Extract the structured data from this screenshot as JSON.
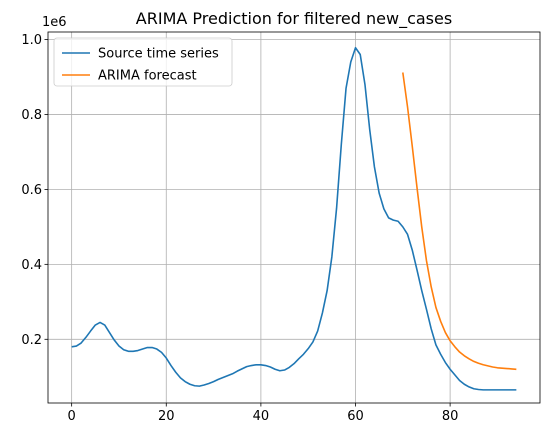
{
  "chart_data": {
    "type": "line",
    "title": "ARIMA Prediction for filtered new_cases",
    "xlabel": "",
    "ylabel": "",
    "y_offset_label": "1e6",
    "xlim": [
      -5,
      99
    ],
    "ylim": [
      0.03,
      1.02
    ],
    "x_ticks": [
      0,
      20,
      40,
      60,
      80
    ],
    "x_tick_labels": [
      "0",
      "20",
      "40",
      "60",
      "80"
    ],
    "y_ticks": [
      0.2,
      0.4,
      0.6,
      0.8,
      1.0
    ],
    "y_tick_labels": [
      "0.2",
      "0.4",
      "0.6",
      "0.8",
      "1.0"
    ],
    "grid": true,
    "legend_position": "upper-left",
    "series": [
      {
        "name": "Source time series",
        "color": "#1f77b4",
        "x": [
          0,
          1,
          2,
          3,
          4,
          5,
          6,
          7,
          8,
          9,
          10,
          11,
          12,
          13,
          14,
          15,
          16,
          17,
          18,
          19,
          20,
          21,
          22,
          23,
          24,
          25,
          26,
          27,
          28,
          29,
          30,
          31,
          32,
          33,
          34,
          35,
          36,
          37,
          38,
          39,
          40,
          41,
          42,
          43,
          44,
          45,
          46,
          47,
          48,
          49,
          50,
          51,
          52,
          53,
          54,
          55,
          56,
          57,
          58,
          59,
          60,
          61,
          62,
          63,
          64,
          65,
          66,
          67,
          68,
          69,
          70,
          71,
          72,
          73,
          74,
          75,
          76,
          77,
          78,
          79,
          80,
          81,
          82,
          83,
          84,
          85,
          86,
          87,
          88,
          89,
          90,
          91,
          92,
          93,
          94
        ],
        "y": [
          0.18,
          0.182,
          0.19,
          0.205,
          0.222,
          0.238,
          0.245,
          0.238,
          0.218,
          0.198,
          0.182,
          0.172,
          0.168,
          0.168,
          0.17,
          0.174,
          0.178,
          0.178,
          0.174,
          0.165,
          0.15,
          0.13,
          0.112,
          0.097,
          0.087,
          0.08,
          0.076,
          0.075,
          0.078,
          0.082,
          0.087,
          0.093,
          0.098,
          0.103,
          0.108,
          0.115,
          0.121,
          0.127,
          0.13,
          0.132,
          0.132,
          0.13,
          0.126,
          0.12,
          0.116,
          0.118,
          0.125,
          0.135,
          0.148,
          0.16,
          0.175,
          0.193,
          0.222,
          0.27,
          0.33,
          0.42,
          0.55,
          0.72,
          0.87,
          0.94,
          0.978,
          0.96,
          0.88,
          0.76,
          0.66,
          0.59,
          0.548,
          0.524,
          0.518,
          0.515,
          0.5,
          0.48,
          0.438,
          0.385,
          0.33,
          0.28,
          0.228,
          0.185,
          0.16,
          0.138,
          0.12,
          0.105,
          0.09,
          0.08,
          0.073,
          0.068,
          0.066,
          0.065,
          0.065,
          0.065,
          0.065,
          0.065,
          0.065,
          0.065,
          0.065
        ]
      },
      {
        "name": "ARIMA forecast",
        "color": "#ff7f0e",
        "x": [
          70,
          71,
          72,
          73,
          74,
          75,
          76,
          77,
          78,
          79,
          80,
          81,
          82,
          83,
          84,
          85,
          86,
          87,
          88,
          89,
          90,
          91,
          92,
          93,
          94
        ],
        "y": [
          0.912,
          0.82,
          0.715,
          0.605,
          0.5,
          0.41,
          0.34,
          0.285,
          0.248,
          0.218,
          0.196,
          0.18,
          0.166,
          0.156,
          0.148,
          0.141,
          0.136,
          0.132,
          0.129,
          0.126,
          0.124,
          0.123,
          0.122,
          0.121,
          0.12
        ]
      }
    ]
  }
}
